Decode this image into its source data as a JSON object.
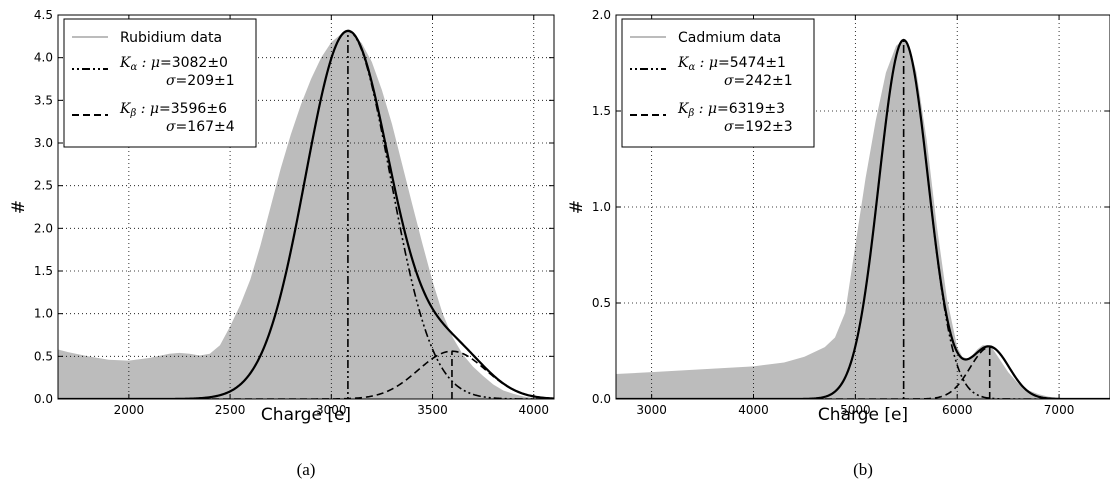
{
  "chart_data": [
    {
      "type": "area",
      "caption": "(a)",
      "xlabel": "Charge [e]",
      "ylabel": "#",
      "xlim": [
        1650,
        4100
      ],
      "ylim": [
        0,
        4.5
      ],
      "xticks": [
        2000,
        2500,
        3000,
        3500,
        4000
      ],
      "yticks": [
        0.0,
        0.5,
        1.0,
        1.5,
        2.0,
        2.5,
        3.0,
        3.5,
        4.0,
        4.5
      ],
      "grid": true,
      "legend_position": "top-left",
      "data_series": {
        "name": "Rubidium data",
        "color": "#bcbcbc",
        "x": [
          1650,
          1700,
          1800,
          1900,
          2000,
          2100,
          2200,
          2250,
          2300,
          2350,
          2400,
          2450,
          2500,
          2550,
          2600,
          2650,
          2700,
          2750,
          2800,
          2850,
          2900,
          2950,
          3000,
          3050,
          3080,
          3100,
          3150,
          3200,
          3250,
          3300,
          3350,
          3400,
          3450,
          3500,
          3550,
          3600,
          3650,
          3700,
          3750,
          3800,
          3850,
          3900,
          3950,
          4000,
          4050,
          4100
        ],
        "y": [
          0.58,
          0.55,
          0.5,
          0.46,
          0.45,
          0.48,
          0.53,
          0.54,
          0.53,
          0.51,
          0.53,
          0.63,
          0.85,
          1.1,
          1.4,
          1.8,
          2.25,
          2.7,
          3.1,
          3.45,
          3.75,
          4.0,
          4.18,
          4.28,
          4.31,
          4.29,
          4.17,
          3.95,
          3.62,
          3.22,
          2.75,
          2.28,
          1.82,
          1.38,
          1.0,
          0.72,
          0.52,
          0.38,
          0.27,
          0.17,
          0.1,
          0.06,
          0.03,
          0.01,
          0.0,
          0.0
        ]
      },
      "components": [
        {
          "name": "K_alpha",
          "style": "dashdot",
          "mu": 3082,
          "sigma": 209,
          "amplitude": 4.31,
          "mu_label": "3082±0",
          "sigma_label": "209±1"
        },
        {
          "name": "K_beta",
          "style": "dashed",
          "mu": 3596,
          "sigma": 167,
          "amplitude": 0.56,
          "mu_label": "3596±6",
          "sigma_label": "167±4"
        }
      ],
      "legend": [
        {
          "label": "Rubidium data"
        },
        {
          "symbol": "K",
          "sub": "α",
          "mu": "3082±0",
          "sigma": "209±1"
        },
        {
          "symbol": "K",
          "sub": "β",
          "mu": "3596±6",
          "sigma": "167±4"
        }
      ]
    },
    {
      "type": "area",
      "caption": "(b)",
      "xlabel": "Charge [e]",
      "ylabel": "#",
      "xlim": [
        2650,
        7500
      ],
      "ylim": [
        0,
        2.0
      ],
      "xticks": [
        3000,
        4000,
        5000,
        6000,
        7000
      ],
      "yticks": [
        0.0,
        0.5,
        1.0,
        1.5,
        2.0
      ],
      "grid": true,
      "legend_position": "top-left",
      "data_series": {
        "name": "Cadmium data",
        "color": "#bcbcbc",
        "x": [
          2650,
          3000,
          3500,
          4000,
          4300,
          4500,
          4700,
          4800,
          4900,
          5000,
          5100,
          5200,
          5300,
          5400,
          5474,
          5550,
          5600,
          5700,
          5800,
          5900,
          6000,
          6050,
          6100,
          6150,
          6200,
          6250,
          6300,
          6350,
          6400,
          6500,
          6600,
          6700,
          6800,
          6900,
          7000,
          7100,
          7500
        ],
        "y": [
          0.13,
          0.14,
          0.155,
          0.17,
          0.19,
          0.22,
          0.27,
          0.32,
          0.45,
          0.8,
          1.15,
          1.45,
          1.7,
          1.84,
          1.87,
          1.8,
          1.7,
          1.35,
          0.9,
          0.52,
          0.27,
          0.22,
          0.21,
          0.23,
          0.26,
          0.28,
          0.28,
          0.26,
          0.22,
          0.14,
          0.08,
          0.045,
          0.025,
          0.012,
          0.005,
          0.0,
          0.0
        ]
      },
      "components": [
        {
          "name": "K_alpha",
          "style": "dashdot",
          "mu": 5474,
          "sigma": 242,
          "amplitude": 1.87,
          "mu_label": "5474±1",
          "sigma_label": "242±1"
        },
        {
          "name": "K_beta",
          "style": "dashed",
          "mu": 6319,
          "sigma": 192,
          "amplitude": 0.27,
          "mu_label": "6319±3",
          "sigma_label": "192±3"
        }
      ],
      "legend": [
        {
          "label": "Cadmium data"
        },
        {
          "symbol": "K",
          "sub": "α",
          "mu": "5474±1",
          "sigma": "242±1"
        },
        {
          "symbol": "K",
          "sub": "β",
          "mu": "6319±3",
          "sigma": "192±3"
        }
      ]
    }
  ]
}
